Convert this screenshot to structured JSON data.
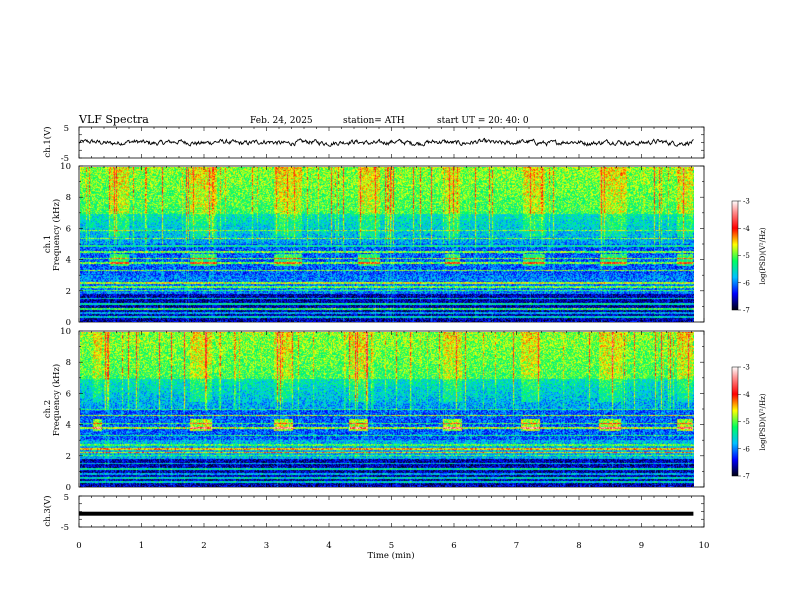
{
  "header": {
    "title": "VLF  Spectra",
    "date": "Feb. 24, 2025",
    "station": "station= ATH",
    "start_ut": "start  UT  =   20: 40: 0"
  },
  "chart_data": [
    {
      "type": "line",
      "panel": "ch1-waveform",
      "ylabel": "ch.1(V)",
      "ylim": [
        -5,
        5
      ],
      "yticks": [
        "5",
        "-5"
      ],
      "xlim": [
        0,
        9.83
      ]
    },
    {
      "type": "heatmap",
      "panel": "ch1-spectrogram",
      "ylabel_line1": "ch.1",
      "ylabel_line2": "Frequency (kHz)",
      "ylim": [
        0,
        10
      ],
      "yticks": [
        "0",
        "2",
        "4",
        "6",
        "8",
        "10"
      ],
      "colorbar": {
        "label": "log(PSD)(V²/Hz)",
        "range": [
          -7,
          -3
        ],
        "ticks": [
          "-3",
          "-4",
          "-5",
          "-6",
          "-7"
        ]
      },
      "transmitter_bursts_min": [
        [
          0.47,
          0.78
        ],
        [
          1.75,
          2.18
        ],
        [
          3.1,
          3.55
        ],
        [
          4.45,
          4.8
        ],
        [
          5.83,
          6.07
        ],
        [
          7.08,
          7.43
        ],
        [
          8.32,
          8.75
        ],
        [
          9.55,
          9.8
        ]
      ],
      "burst_band_khz": [
        3.6,
        4.4
      ],
      "narrowband_lines_khz": [
        0.3,
        0.55,
        0.8,
        1.15,
        1.5,
        2.0,
        2.25,
        2.5,
        3.3,
        3.8,
        4.1,
        4.5,
        4.9,
        5.4,
        5.9
      ]
    },
    {
      "type": "heatmap",
      "panel": "ch2-spectrogram",
      "ylabel_line1": "ch.2",
      "ylabel_line2": "Frequency (kHz)",
      "ylim": [
        0,
        10
      ],
      "yticks": [
        "0",
        "2",
        "4",
        "6",
        "8",
        "10"
      ],
      "colorbar": {
        "label": "log(PSD)(V²/Hz)",
        "range": [
          -7,
          -3
        ],
        "ticks": [
          "-3",
          "-4",
          "-5",
          "-6",
          "-7"
        ]
      },
      "transmitter_bursts_min": [
        [
          0.2,
          0.35
        ],
        [
          1.75,
          2.1
        ],
        [
          3.1,
          3.4
        ],
        [
          4.3,
          4.6
        ],
        [
          5.8,
          6.1
        ],
        [
          7.05,
          7.35
        ],
        [
          8.3,
          8.65
        ],
        [
          9.55,
          9.8
        ]
      ],
      "burst_band_khz": [
        3.6,
        4.4
      ],
      "narrowband_lines_khz": [
        0.3,
        0.55,
        0.8,
        1.15,
        1.5,
        2.0,
        2.2,
        2.45,
        2.7,
        3.3,
        3.8,
        4.1,
        4.6,
        5.0
      ]
    },
    {
      "type": "line",
      "panel": "ch3-waveform",
      "ylabel": "ch.3(V)",
      "ylim": [
        -5,
        5
      ],
      "yticks": [
        "5",
        "-5"
      ],
      "xlim": [
        0,
        9.83
      ],
      "value": -0.7
    }
  ],
  "xaxis": {
    "label": "Time  (min)",
    "ticks": [
      "0",
      "1",
      "2",
      "3",
      "4",
      "5",
      "6",
      "7",
      "8",
      "9",
      "10"
    ],
    "range": [
      0,
      10
    ]
  }
}
